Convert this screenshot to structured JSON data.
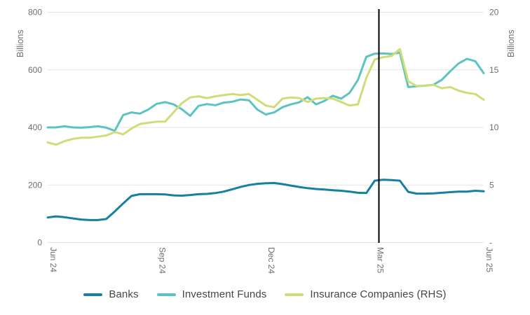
{
  "chart_data": {
    "type": "line",
    "title": "",
    "n_points": 53,
    "x_tick_labels": [
      "Jun 24",
      "Sep 24",
      "Dec 24",
      "Mar 25",
      "Jun 25"
    ],
    "x_tick_indices": [
      0,
      13,
      26,
      39,
      52
    ],
    "grid": true,
    "legend_position": "bottom",
    "left_axis": {
      "title": "Billions",
      "range": [
        0,
        800
      ],
      "ticks": [
        800,
        600,
        400,
        200,
        0
      ],
      "tick_labels": [
        "800",
        "600",
        "400",
        "200",
        "0"
      ]
    },
    "right_axis": {
      "title": "Billions",
      "range": [
        0,
        20
      ],
      "ticks": [
        20,
        15,
        10,
        5,
        0
      ],
      "tick_labels": [
        "20",
        "15",
        "10",
        "5",
        "-"
      ]
    },
    "annotation_vline": {
      "x_index": 39.5,
      "color": "#000000"
    },
    "colors": {
      "grid": "#e4e4e4",
      "tick_text": "#6e6e6e",
      "legend_text": "#464646",
      "background": "#ffffff"
    },
    "series": [
      {
        "name": "Banks",
        "axis": "left",
        "color": "#1780a1",
        "values": [
          87,
          91,
          88,
          84,
          80,
          78,
          78,
          82,
          108,
          136,
          162,
          168,
          168,
          168,
          167,
          164,
          163,
          165,
          168,
          169,
          172,
          177,
          185,
          193,
          200,
          204,
          206,
          207,
          203,
          198,
          193,
          189,
          186,
          184,
          182,
          180,
          177,
          173,
          172,
          215,
          218,
          217,
          215,
          176,
          170,
          170,
          171,
          173,
          175,
          177,
          177,
          180,
          178
        ]
      },
      {
        "name": "Investment Funds",
        "axis": "left",
        "color": "#5bc4c0",
        "values": [
          400,
          400,
          404,
          400,
          399,
          401,
          404,
          399,
          388,
          443,
          452,
          448,
          462,
          482,
          488,
          480,
          463,
          440,
          475,
          481,
          477,
          486,
          489,
          497,
          494,
          462,
          445,
          452,
          470,
          480,
          487,
          505,
          480,
          492,
          510,
          500,
          520,
          565,
          645,
          656,
          657,
          655,
          660,
          540,
          543,
          545,
          548,
          565,
          595,
          622,
          638,
          630,
          588
        ]
      },
      {
        "name": "Insurance Companies (RHS)",
        "axis": "right",
        "color": "#cedd78",
        "values": [
          8.7,
          8.5,
          8.8,
          9.0,
          9.1,
          9.1,
          9.2,
          9.3,
          9.6,
          9.4,
          9.9,
          10.3,
          10.4,
          10.5,
          10.5,
          11.3,
          12.1,
          12.6,
          12.7,
          12.55,
          12.7,
          12.8,
          12.9,
          12.8,
          12.9,
          12.4,
          11.9,
          11.75,
          12.5,
          12.6,
          12.55,
          12.2,
          12.5,
          12.55,
          12.5,
          12.2,
          11.9,
          12.0,
          14.3,
          15.9,
          16.1,
          16.2,
          16.8,
          14.0,
          13.6,
          13.6,
          13.7,
          13.4,
          13.5,
          13.2,
          13.0,
          12.9,
          12.4
        ]
      }
    ]
  },
  "legend": {
    "items": [
      {
        "label": "Banks"
      },
      {
        "label": "Investment Funds"
      },
      {
        "label": "Insurance Companies (RHS)"
      }
    ]
  }
}
